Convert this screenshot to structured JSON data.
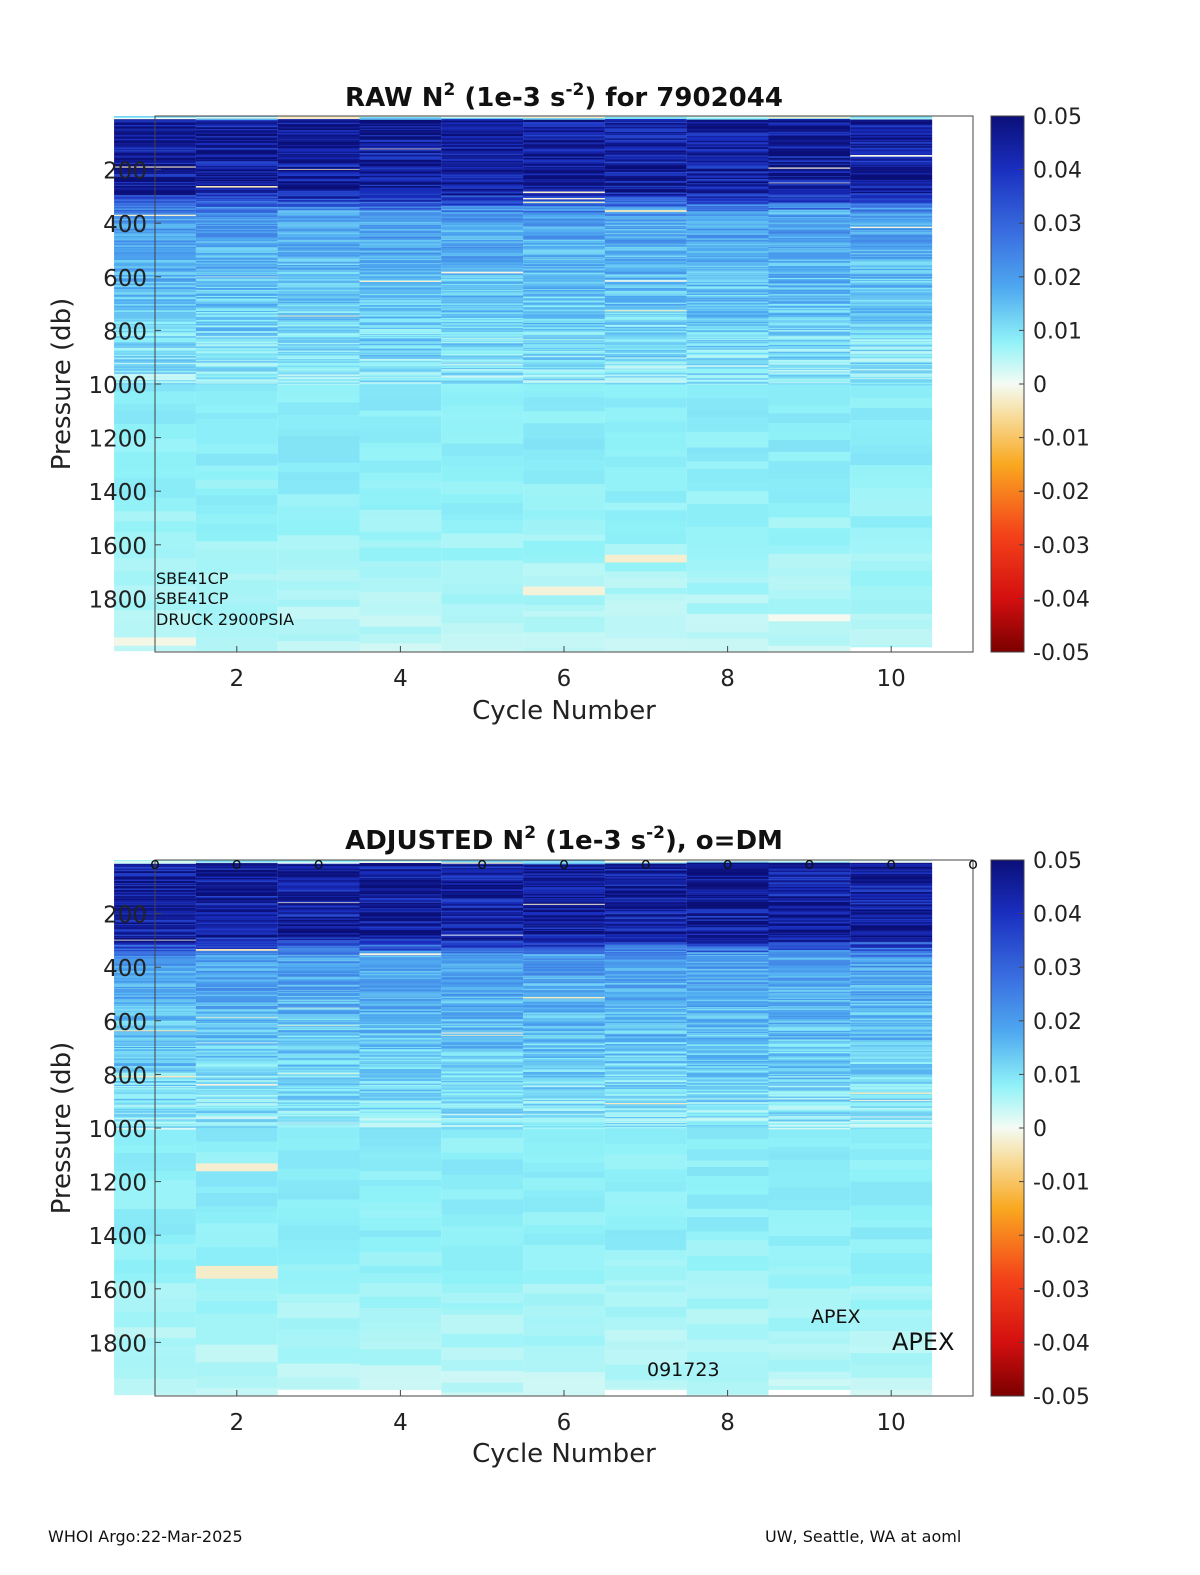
{
  "chart_data": [
    {
      "type": "heatmap",
      "title": {
        "pre": "RAW N",
        "sup1": "2",
        "mid": " (1e-3 s",
        "sup2": "-2",
        "post": ") for 7902044"
      },
      "xlabel": "Cycle Number",
      "ylabel": "Pressure (db)",
      "x_ticks": [
        "2",
        "4",
        "6",
        "8",
        "10"
      ],
      "y_ticks": [
        "200",
        "400",
        "600",
        "800",
        "1000",
        "1200",
        "1400",
        "1600",
        "1800"
      ],
      "xlim": [
        1,
        11
      ],
      "ylim": [
        0,
        2000
      ],
      "colorbar": {
        "range": [
          -0.05,
          0.05
        ],
        "ticks": [
          "0.05",
          "0.04",
          "0.03",
          "0.02",
          "0.01",
          "0",
          "-0.01",
          "-0.02",
          "-0.03",
          "-0.04",
          "-0.05"
        ]
      },
      "cycles": [
        1,
        2,
        3,
        4,
        5,
        6,
        7,
        8,
        9,
        10
      ],
      "profile_bottom_db": [
        1995,
        1995,
        1995,
        1995,
        1995,
        1995,
        1995,
        1995,
        1995,
        1980
      ],
      "annotations": [
        "SBE41CP",
        "SBE41CP",
        "DRUCK 2900PSIA"
      ],
      "markers": []
    },
    {
      "type": "heatmap",
      "title": {
        "pre": "ADJUSTED N",
        "sup1": "2",
        "mid": " (1e-3 s",
        "sup2": "-2",
        "post": "), o=DM"
      },
      "xlabel": "Cycle Number",
      "ylabel": "Pressure (db)",
      "x_ticks": [
        "2",
        "4",
        "6",
        "8",
        "10"
      ],
      "y_ticks": [
        "200",
        "400",
        "600",
        "800",
        "1000",
        "1200",
        "1400",
        "1600",
        "1800"
      ],
      "xlim": [
        1,
        11
      ],
      "ylim": [
        0,
        2000
      ],
      "colorbar": {
        "range": [
          -0.05,
          0.05
        ],
        "ticks": [
          "0.05",
          "0.04",
          "0.03",
          "0.02",
          "0.01",
          "0",
          "-0.01",
          "-0.02",
          "-0.03",
          "-0.04",
          "-0.05"
        ]
      },
      "cycles": [
        1,
        2,
        3,
        4,
        5,
        6,
        7,
        8,
        9,
        10
      ],
      "profile_bottom_db": [
        1995,
        1995,
        1975,
        1975,
        1995,
        1995,
        1975,
        1995,
        1975,
        1995
      ],
      "annotations": [
        "APEX",
        "APEX",
        "091723"
      ],
      "markers": [
        {
          "x": 1,
          "label": "o"
        },
        {
          "x": 2,
          "label": "o"
        },
        {
          "x": 3,
          "label": "o"
        },
        {
          "x": 5,
          "label": "o"
        },
        {
          "x": 6,
          "label": "o"
        },
        {
          "x": 7,
          "label": "o"
        },
        {
          "x": 8,
          "label": "o"
        },
        {
          "x": 9,
          "label": "o"
        },
        {
          "x": 10,
          "label": "o"
        },
        {
          "x": 11,
          "label": "o"
        }
      ]
    }
  ],
  "footer": {
    "left": "WHOI Argo:22-Mar-2025",
    "right": "UW, Seattle, WA at aoml"
  }
}
